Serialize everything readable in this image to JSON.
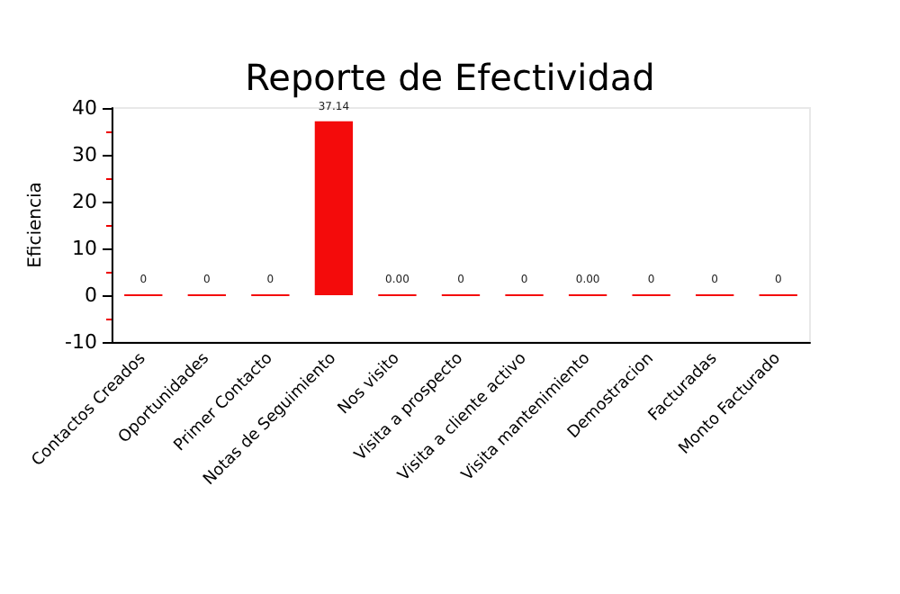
{
  "chart_data": {
    "type": "bar",
    "title": "Reporte de Efectividad",
    "ylabel": "Eficiencia",
    "categories": [
      "Contactos Creados",
      "Oportunidades",
      "Primer Contacto",
      "Notas de Seguimiento",
      "Nos visito",
      "Visita a prospecto",
      "Visita a cliente activo",
      "Visita mantenimiento",
      "Demostracion",
      "Facturadas",
      "Monto Facturado"
    ],
    "values": [
      0,
      0,
      0,
      37.14,
      0,
      0,
      0,
      0,
      0,
      0,
      0
    ],
    "value_labels": [
      "0",
      "0",
      "0",
      "37.14",
      "0.00",
      "0",
      "0",
      "0.00",
      "0",
      "0",
      "0"
    ],
    "color": "#f40b0b",
    "ylim": [
      -10,
      40
    ],
    "yticks": [
      -10,
      0,
      10,
      20,
      30,
      40
    ],
    "grid": false
  }
}
